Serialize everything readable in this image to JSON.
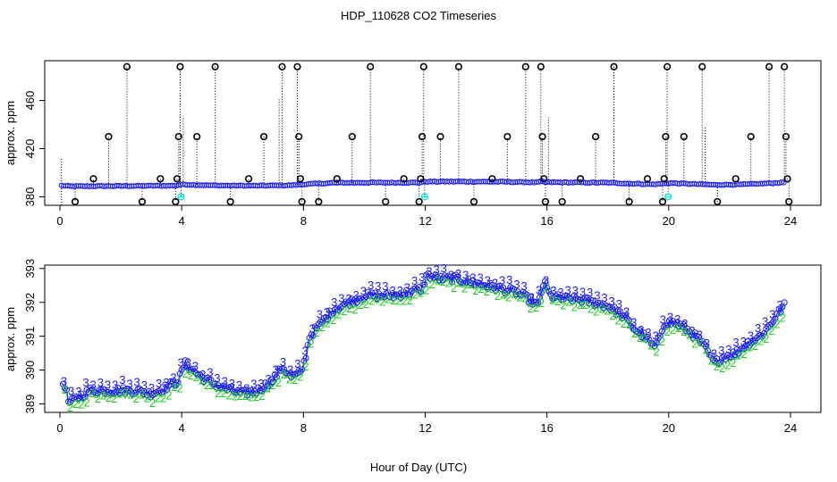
{
  "colors": {
    "axis": "#000000",
    "black_markers": "#000000",
    "blue_series": "#1a1aff",
    "green_series": "#22cc22",
    "cyan_markers": "#00e5e5",
    "dotted_lines": "#000000"
  },
  "chart_data": [
    {
      "type": "scatter",
      "title": "HDP_110628  CO2 Timeseries",
      "xlabel": "",
      "ylabel": "approx. ppm",
      "xlim": [
        -0.5,
        25
      ],
      "ylim": [
        373,
        493
      ],
      "x_ticks": [
        0,
        4,
        8,
        12,
        16,
        20,
        24
      ],
      "y_ticks": [
        380,
        420,
        460
      ],
      "baseline": [
        [
          0,
          389.5
        ],
        [
          0.3,
          388.8
        ],
        [
          2,
          389
        ],
        [
          3.8,
          389.3
        ],
        [
          4,
          390.3
        ],
        [
          5,
          389.5
        ],
        [
          6.5,
          389.2
        ],
        [
          7.6,
          389.6
        ],
        [
          8,
          390.4
        ],
        [
          9,
          391.6
        ],
        [
          10,
          391.8
        ],
        [
          11.8,
          391.8
        ],
        [
          12,
          392.6
        ],
        [
          13,
          392.7
        ],
        [
          14.5,
          392.5
        ],
        [
          15.7,
          392.0
        ],
        [
          15.8,
          392.7
        ],
        [
          16,
          392.1
        ],
        [
          18,
          391.7
        ],
        [
          19.5,
          390.4
        ],
        [
          20,
          391.4
        ],
        [
          21.5,
          390.0
        ],
        [
          22.5,
          390.3
        ],
        [
          23.5,
          391.5
        ],
        [
          23.8,
          392.0
        ]
      ],
      "spikes_black": [
        {
          "x": 0.5,
          "y": 376
        },
        {
          "x": 1.1,
          "y": 395
        },
        {
          "x": 1.6,
          "y": 430
        },
        {
          "x": 2.2,
          "y": 488
        },
        {
          "x": 2.7,
          "y": 376
        },
        {
          "x": 3.3,
          "y": 395
        },
        {
          "x": 3.8,
          "y": 376
        },
        {
          "x": 3.85,
          "y": 395
        },
        {
          "x": 3.9,
          "y": 430
        },
        {
          "x": 3.95,
          "y": 488
        },
        {
          "x": 4.5,
          "y": 430
        },
        {
          "x": 5.1,
          "y": 488
        },
        {
          "x": 5.6,
          "y": 376
        },
        {
          "x": 6.2,
          "y": 395
        },
        {
          "x": 6.7,
          "y": 430
        },
        {
          "x": 7.3,
          "y": 488
        },
        {
          "x": 7.8,
          "y": 488
        },
        {
          "x": 7.85,
          "y": 430
        },
        {
          "x": 7.9,
          "y": 395
        },
        {
          "x": 7.95,
          "y": 376
        },
        {
          "x": 8.5,
          "y": 376
        },
        {
          "x": 9.1,
          "y": 395
        },
        {
          "x": 9.6,
          "y": 430
        },
        {
          "x": 10.2,
          "y": 488
        },
        {
          "x": 10.7,
          "y": 376
        },
        {
          "x": 11.3,
          "y": 395
        },
        {
          "x": 11.8,
          "y": 376
        },
        {
          "x": 11.85,
          "y": 395
        },
        {
          "x": 11.9,
          "y": 430
        },
        {
          "x": 11.95,
          "y": 488
        },
        {
          "x": 12.5,
          "y": 430
        },
        {
          "x": 13.1,
          "y": 488
        },
        {
          "x": 13.6,
          "y": 376
        },
        {
          "x": 14.2,
          "y": 395
        },
        {
          "x": 14.7,
          "y": 430
        },
        {
          "x": 15.3,
          "y": 488
        },
        {
          "x": 15.8,
          "y": 488
        },
        {
          "x": 15.85,
          "y": 430
        },
        {
          "x": 15.9,
          "y": 395
        },
        {
          "x": 15.95,
          "y": 376
        },
        {
          "x": 16.5,
          "y": 376
        },
        {
          "x": 17.1,
          "y": 395
        },
        {
          "x": 17.6,
          "y": 430
        },
        {
          "x": 18.2,
          "y": 488
        },
        {
          "x": 18.7,
          "y": 376
        },
        {
          "x": 19.3,
          "y": 395
        },
        {
          "x": 19.8,
          "y": 376
        },
        {
          "x": 19.85,
          "y": 395
        },
        {
          "x": 19.9,
          "y": 430
        },
        {
          "x": 19.95,
          "y": 488
        },
        {
          "x": 20.5,
          "y": 430
        },
        {
          "x": 21.1,
          "y": 488
        },
        {
          "x": 21.6,
          "y": 376
        },
        {
          "x": 22.2,
          "y": 395
        },
        {
          "x": 22.7,
          "y": 430
        },
        {
          "x": 23.3,
          "y": 488
        },
        {
          "x": 23.8,
          "y": 488
        },
        {
          "x": 23.85,
          "y": 430
        },
        {
          "x": 23.9,
          "y": 395
        },
        {
          "x": 23.95,
          "y": 376
        }
      ],
      "spikes_cyan": [
        {
          "x": 3.98,
          "y": 380
        },
        {
          "x": 11.98,
          "y": 380
        },
        {
          "x": 19.98,
          "y": 380
        }
      ],
      "extra_dotted": [
        {
          "x": 0.05,
          "y1": 373,
          "y2": 412
        },
        {
          "x": 7.2,
          "y1": 389,
          "y2": 462
        },
        {
          "x": 4.05,
          "y1": 389,
          "y2": 447
        },
        {
          "x": 16.05,
          "y1": 392,
          "y2": 446
        },
        {
          "x": 21.2,
          "y1": 390,
          "y2": 438
        }
      ]
    },
    {
      "type": "scatter",
      "title": "",
      "xlabel": "Hour of Day (UTC)",
      "ylabel": "approx. ppm",
      "xlim": [
        -0.5,
        25
      ],
      "ylim": [
        388.75,
        393.1
      ],
      "x_ticks": [
        0,
        4,
        8,
        12,
        16,
        20,
        24
      ],
      "y_ticks": [
        389,
        390,
        391,
        392,
        393
      ],
      "series": [
        {
          "name": "3",
          "marker": "circle+label-3"
        },
        {
          "name": "2",
          "marker": "label-2"
        }
      ],
      "anchors": [
        [
          0.15,
          389.6
        ],
        [
          0.3,
          389.0
        ],
        [
          0.6,
          389.2
        ],
        [
          1,
          389.4
        ],
        [
          1.5,
          389.4
        ],
        [
          2,
          389.4
        ],
        [
          2.5,
          389.4
        ],
        [
          3,
          389.3
        ],
        [
          3.5,
          389.5
        ],
        [
          3.9,
          389.7
        ],
        [
          4.1,
          390.2
        ],
        [
          4.5,
          389.9
        ],
        [
          4.8,
          389.7
        ],
        [
          5.3,
          389.5
        ],
        [
          6,
          389.3
        ],
        [
          6.5,
          389.4
        ],
        [
          7.0,
          389.7
        ],
        [
          7.3,
          390.1
        ],
        [
          7.6,
          389.8
        ],
        [
          7.9,
          389.9
        ],
        [
          8.05,
          390.3
        ],
        [
          8.2,
          391.0
        ],
        [
          8.6,
          391.4
        ],
        [
          9.0,
          391.8
        ],
        [
          9.5,
          392.0
        ],
        [
          10,
          392.2
        ],
        [
          10.5,
          392.2
        ],
        [
          11,
          392.2
        ],
        [
          11.5,
          392.3
        ],
        [
          11.9,
          392.4
        ],
        [
          12.05,
          392.8
        ],
        [
          12.5,
          392.7
        ],
        [
          13,
          392.7
        ],
        [
          13.5,
          392.6
        ],
        [
          14,
          392.5
        ],
        [
          14.5,
          392.4
        ],
        [
          15,
          392.3
        ],
        [
          15.4,
          392.1
        ],
        [
          15.7,
          391.9
        ],
        [
          15.9,
          392.6
        ],
        [
          16.1,
          392.2
        ],
        [
          16.5,
          392.1
        ],
        [
          17,
          392.1
        ],
        [
          17.5,
          392.0
        ],
        [
          18,
          391.9
        ],
        [
          18.5,
          391.6
        ],
        [
          18.9,
          391.2
        ],
        [
          19.2,
          391.0
        ],
        [
          19.5,
          390.7
        ],
        [
          19.6,
          390.7
        ],
        [
          19.85,
          391.4
        ],
        [
          20.2,
          391.4
        ],
        [
          20.6,
          391.2
        ],
        [
          21.0,
          390.9
        ],
        [
          21.3,
          390.5
        ],
        [
          21.5,
          390.2
        ],
        [
          21.8,
          390.4
        ],
        [
          22.2,
          390.5
        ],
        [
          22.6,
          390.8
        ],
        [
          23.0,
          391.0
        ],
        [
          23.3,
          391.3
        ],
        [
          23.6,
          391.7
        ],
        [
          23.8,
          391.9
        ]
      ]
    }
  ],
  "text": {
    "title": "HDP_110628  CO2 Timeseries",
    "top_ylabel": "approx. ppm",
    "bottom_ylabel": "approx. ppm",
    "xlabel": "Hour of Day (UTC)",
    "marker3": "3",
    "marker2": "2"
  }
}
